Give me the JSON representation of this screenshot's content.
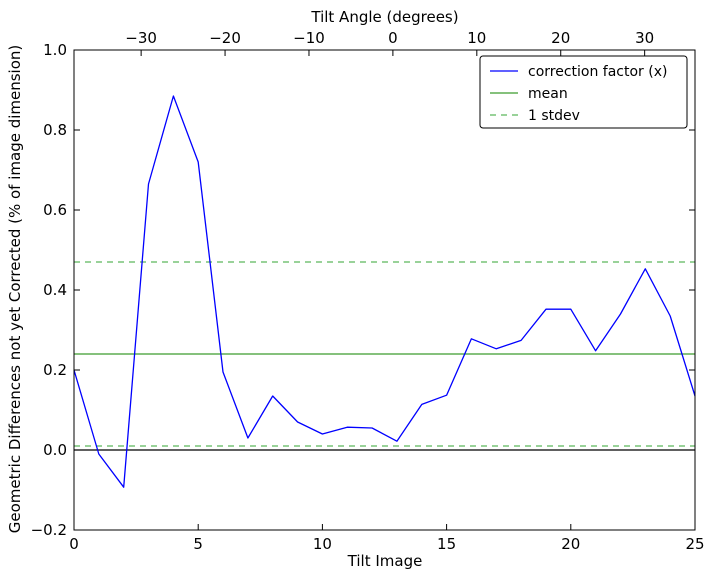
{
  "chart_data": {
    "type": "line",
    "xlabel": "Tilt Image",
    "ylabel": "Geometric Differences not yet Corrected (% of image dimension)",
    "top_xlabel": "Tilt Angle (degrees)",
    "xlim": [
      0,
      25
    ],
    "ylim": [
      -0.2,
      1.0
    ],
    "top_xlim": [
      -38,
      36
    ],
    "x_ticks": [
      0,
      5,
      10,
      15,
      20,
      25
    ],
    "x_tick_labels": [
      "0",
      "5",
      "10",
      "15",
      "20",
      "25"
    ],
    "y_ticks": [
      -0.2,
      0.0,
      0.2,
      0.4,
      0.6,
      0.8,
      1.0
    ],
    "y_tick_labels": [
      "−0.2",
      "0.0",
      "0.2",
      "0.4",
      "0.6",
      "0.8",
      "1.0"
    ],
    "top_x_ticks": [
      -30,
      -20,
      -10,
      0,
      10,
      20,
      30
    ],
    "top_x_tick_labels": [
      "−30",
      "−20",
      "−10",
      "0",
      "10",
      "20",
      "30"
    ],
    "grid": false,
    "legend_position": "top-right",
    "series": [
      {
        "name": "correction factor (x)",
        "color": "#0000ff",
        "style": "solid",
        "x": [
          0,
          1,
          2,
          3,
          4,
          5,
          6,
          7,
          8,
          9,
          10,
          11,
          12,
          13,
          14,
          15,
          16,
          17,
          18,
          19,
          20,
          21,
          22,
          23,
          24,
          25
        ],
        "values": [
          0.2,
          -0.01,
          -0.093,
          0.665,
          0.885,
          0.72,
          0.195,
          0.03,
          0.135,
          0.07,
          0.04,
          0.057,
          0.055,
          0.022,
          0.114,
          0.137,
          0.278,
          0.253,
          0.274,
          0.352,
          0.352,
          0.248,
          0.34,
          0.453,
          0.335,
          0.135
        ]
      },
      {
        "name": "mean",
        "color": "#3c9c2e",
        "style": "solid",
        "constant": 0.24
      },
      {
        "name": "1 stdev",
        "color": "#5cb85c",
        "style": "dashed",
        "constant": 0.47,
        "constant_lower": 0.01
      }
    ],
    "reference_line": {
      "y": 0.0,
      "color": "#000000"
    }
  }
}
